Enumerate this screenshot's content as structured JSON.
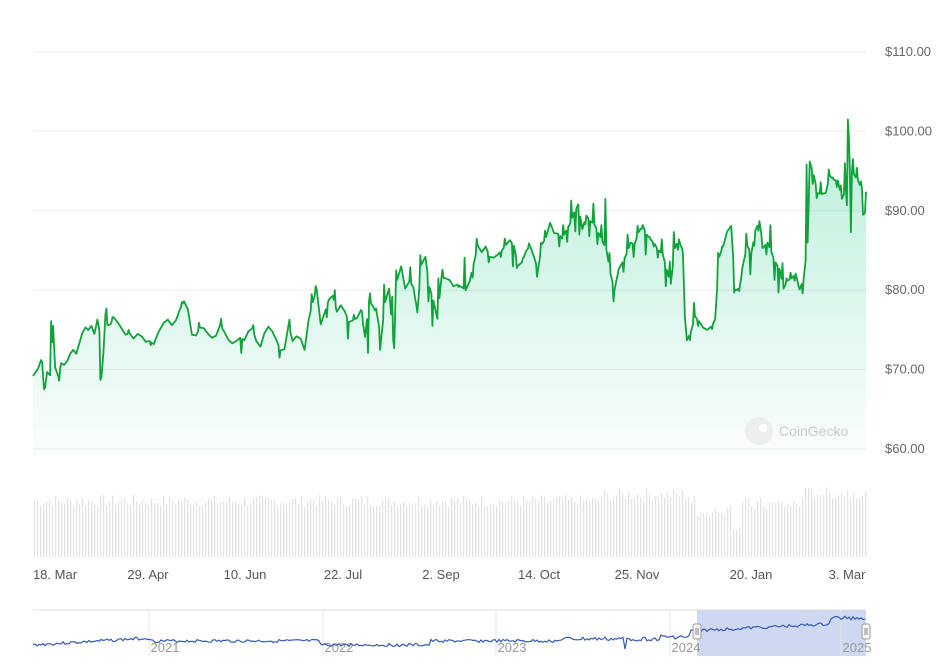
{
  "watermark": {
    "text": "CoinGecko"
  },
  "chart_data": [
    {
      "type": "area",
      "y_axis_side": "right",
      "ylim": [
        57,
        113
      ],
      "y_ticks": [
        60,
        70,
        80,
        90,
        100,
        110
      ],
      "y_tick_labels": [
        "$60.00",
        "$70.00",
        "$80.00",
        "$90.00",
        "$100.00",
        "$110.00"
      ],
      "x_tick_labels": [
        "18. Mar",
        "29. Apr",
        "10. Jun",
        "22. Jul",
        "2. Sep",
        "14. Oct",
        "25. Nov",
        "20. Jan",
        "3. Mar"
      ],
      "grid": true,
      "line_color": "#10a33b",
      "fill_color": "#16c784",
      "y_anchors": [
        [
          0,
          69.2
        ],
        [
          5,
          70.1
        ],
        [
          8,
          71.2
        ],
        [
          10,
          69.0
        ],
        [
          12,
          67.8
        ],
        [
          14,
          69.7
        ],
        [
          17,
          69.3
        ],
        [
          20,
          75.5
        ],
        [
          22,
          70.3
        ],
        [
          25,
          69.2
        ],
        [
          28,
          70.8
        ],
        [
          31,
          70.6
        ],
        [
          34,
          71.1
        ],
        [
          37,
          72.0
        ],
        [
          40,
          72.5
        ],
        [
          43,
          72.0
        ],
        [
          46,
          73.3
        ],
        [
          49,
          74.6
        ],
        [
          52,
          75.3
        ],
        [
          55,
          75.0
        ],
        [
          58,
          75.5
        ],
        [
          61,
          74.5
        ],
        [
          64,
          76.3
        ],
        [
          66,
          74.9
        ],
        [
          68,
          69.0
        ],
        [
          70,
          72.1
        ],
        [
          72,
          76.9
        ],
        [
          74,
          75.6
        ],
        [
          77,
          75.7
        ],
        [
          80,
          76.6
        ],
        [
          84,
          76.0
        ],
        [
          88,
          75.2
        ],
        [
          92,
          74.4
        ],
        [
          96,
          74.6
        ],
        [
          100,
          73.9
        ],
        [
          104,
          74.5
        ],
        [
          108,
          74.2
        ],
        [
          112,
          73.5
        ],
        [
          116,
          73.6
        ],
        [
          120,
          73.2
        ],
        [
          125,
          74.8
        ],
        [
          130,
          75.9
        ],
        [
          134,
          76.3
        ],
        [
          138,
          75.6
        ],
        [
          142,
          76.2
        ],
        [
          146,
          77.6
        ],
        [
          150,
          78.6
        ],
        [
          154,
          77.6
        ],
        [
          158,
          74.4
        ],
        [
          162,
          74.3
        ],
        [
          166,
          75.3
        ],
        [
          170,
          75.2
        ],
        [
          174,
          74.5
        ],
        [
          178,
          74.0
        ],
        [
          182,
          74.3
        ],
        [
          186,
          75.6
        ],
        [
          190,
          74.8
        ],
        [
          194,
          73.8
        ],
        [
          198,
          73.3
        ],
        [
          202,
          73.6
        ],
        [
          206,
          74.0
        ],
        [
          210,
          73.7
        ],
        [
          214,
          74.8
        ],
        [
          218,
          75.2
        ],
        [
          222,
          73.6
        ],
        [
          226,
          72.9
        ],
        [
          230,
          74.6
        ],
        [
          234,
          75.4
        ],
        [
          238,
          74.8
        ],
        [
          242,
          73.7
        ],
        [
          246,
          72.4
        ],
        [
          250,
          72.6
        ],
        [
          254,
          75.6
        ],
        [
          258,
          73.6
        ],
        [
          262,
          74.2
        ],
        [
          266,
          73.9
        ],
        [
          270,
          72.5
        ],
        [
          274,
          76.3
        ],
        [
          278,
          78.5
        ],
        [
          282,
          80.1
        ],
        [
          286,
          75.7
        ],
        [
          290,
          77.2
        ],
        [
          294,
          78.8
        ],
        [
          298,
          79.3
        ],
        [
          302,
          77.3
        ],
        [
          306,
          78.1
        ],
        [
          310,
          77.3
        ],
        [
          314,
          76.0
        ],
        [
          318,
          76.2
        ],
        [
          322,
          76.5
        ],
        [
          326,
          77.5
        ],
        [
          330,
          74.1
        ],
        [
          334,
          78.6
        ],
        [
          338,
          78.0
        ],
        [
          342,
          76.9
        ],
        [
          346,
          73.8
        ],
        [
          350,
          78.5
        ],
        [
          354,
          80.2
        ],
        [
          358,
          73.7
        ],
        [
          362,
          81.3
        ],
        [
          366,
          83.0
        ],
        [
          370,
          80.2
        ],
        [
          374,
          81.1
        ],
        [
          378,
          80.4
        ],
        [
          382,
          77.2
        ],
        [
          386,
          83.2
        ],
        [
          390,
          84.2
        ],
        [
          394,
          80.4
        ],
        [
          398,
          78.7
        ],
        [
          402,
          76.4
        ],
        [
          406,
          81.6
        ],
        [
          410,
          81.5
        ],
        [
          414,
          81.3
        ],
        [
          418,
          80.5
        ],
        [
          422,
          80.7
        ],
        [
          426,
          80.4
        ],
        [
          430,
          80.0
        ],
        [
          434,
          81.1
        ],
        [
          438,
          83.3
        ],
        [
          442,
          85.6
        ],
        [
          446,
          84.8
        ],
        [
          450,
          85.5
        ],
        [
          454,
          84.2
        ],
        [
          458,
          84.1
        ],
        [
          462,
          84.5
        ],
        [
          466,
          85.0
        ],
        [
          470,
          85.7
        ],
        [
          474,
          86.3
        ],
        [
          478,
          85.6
        ],
        [
          482,
          83.1
        ],
        [
          486,
          83.5
        ],
        [
          490,
          84.9
        ],
        [
          494,
          85.6
        ],
        [
          498,
          84.2
        ],
        [
          502,
          82.6
        ],
        [
          506,
          85.8
        ],
        [
          510,
          86.7
        ],
        [
          514,
          88.5
        ],
        [
          518,
          87.2
        ],
        [
          522,
          87.1
        ],
        [
          526,
          86.5
        ],
        [
          530,
          87.5
        ],
        [
          534,
          88.4
        ],
        [
          538,
          89.8
        ],
        [
          542,
          90.8
        ],
        [
          546,
          87.7
        ],
        [
          550,
          89.4
        ],
        [
          554,
          88.7
        ],
        [
          558,
          88.3
        ],
        [
          562,
          87.2
        ],
        [
          566,
          86.2
        ],
        [
          570,
          85.1
        ],
        [
          574,
          82.1
        ],
        [
          578,
          80.0
        ],
        [
          582,
          82.6
        ],
        [
          586,
          83.5
        ],
        [
          590,
          84.6
        ],
        [
          594,
          86.0
        ],
        [
          598,
          85.8
        ],
        [
          602,
          87.3
        ],
        [
          606,
          88.2
        ],
        [
          610,
          87.0
        ],
        [
          614,
          86.4
        ],
        [
          618,
          85.8
        ],
        [
          622,
          85.0
        ],
        [
          626,
          84.5
        ],
        [
          630,
          82.6
        ],
        [
          634,
          80.8
        ],
        [
          638,
          85.3
        ],
        [
          642,
          86.4
        ],
        [
          646,
          84.7
        ],
        [
          648,
          76.6
        ],
        [
          650,
          73.7
        ],
        [
          654,
          74.8
        ],
        [
          658,
          76.7
        ],
        [
          662,
          76.1
        ],
        [
          666,
          75.3
        ],
        [
          670,
          75.0
        ],
        [
          674,
          75.4
        ],
        [
          678,
          76.3
        ],
        [
          682,
          84.2
        ],
        [
          686,
          85.5
        ],
        [
          690,
          87.4
        ],
        [
          694,
          88.1
        ],
        [
          698,
          80.1
        ],
        [
          702,
          79.9
        ],
        [
          706,
          83.4
        ],
        [
          710,
          85.6
        ],
        [
          714,
          84.6
        ],
        [
          718,
          87.5
        ],
        [
          722,
          88.7
        ],
        [
          726,
          85.4
        ],
        [
          730,
          86.0
        ],
        [
          734,
          84.8
        ],
        [
          738,
          83.5
        ],
        [
          742,
          82.7
        ],
        [
          746,
          80.2
        ],
        [
          750,
          81.2
        ],
        [
          754,
          81.5
        ],
        [
          758,
          82.1
        ],
        [
          762,
          80.1
        ],
        [
          766,
          81.4
        ],
        [
          770,
          86.0
        ],
        [
          772,
          96.2
        ],
        [
          776,
          94.5
        ],
        [
          780,
          92.2
        ],
        [
          784,
          92.1
        ],
        [
          788,
          92.3
        ],
        [
          792,
          94.4
        ],
        [
          796,
          93.9
        ],
        [
          800,
          93.8
        ],
        [
          804,
          91.5
        ],
        [
          808,
          92.6
        ],
        [
          810,
          101.5
        ],
        [
          812,
          95.0
        ],
        [
          816,
          94.6
        ],
        [
          820,
          93.8
        ],
        [
          824,
          92.7
        ],
        [
          826,
          89.6
        ],
        [
          828,
          92.4
        ]
      ],
      "y_spikes": [
        [
          9,
          71.0
        ],
        [
          11,
          67.5
        ],
        [
          18,
          76.1
        ],
        [
          26,
          68.6
        ],
        [
          67,
          68.7
        ],
        [
          73,
          77.7
        ],
        [
          79,
          76.6
        ],
        [
          95,
          75.0
        ],
        [
          117,
          73.1
        ],
        [
          148,
          78.5
        ],
        [
          165,
          75.9
        ],
        [
          187,
          76.4
        ],
        [
          207,
          72.1
        ],
        [
          219,
          75.6
        ],
        [
          245,
          71.5
        ],
        [
          255,
          76.3
        ],
        [
          277,
          79.5
        ],
        [
          281,
          80.5
        ],
        [
          292,
          76.6
        ],
        [
          300,
          80.0
        ],
        [
          313,
          73.9
        ],
        [
          319,
          76.9
        ],
        [
          327,
          77.3
        ],
        [
          333,
          72.1
        ],
        [
          335,
          79.6
        ],
        [
          341,
          77.7
        ],
        [
          345,
          72.5
        ],
        [
          349,
          80.7
        ],
        [
          357,
          79.2
        ],
        [
          359,
          72.7
        ],
        [
          361,
          82.5
        ],
        [
          375,
          82.9
        ],
        [
          381,
          78.2
        ],
        [
          385,
          84.4
        ],
        [
          393,
          78.6
        ],
        [
          397,
          75.5
        ],
        [
          403,
          81.5
        ],
        [
          407,
          82.6
        ],
        [
          423,
          80.4
        ],
        [
          429,
          84.1
        ],
        [
          437,
          81.6
        ],
        [
          441,
          86.5
        ],
        [
          453,
          83.5
        ],
        [
          465,
          84.2
        ],
        [
          469,
          86.5
        ],
        [
          477,
          83.0
        ],
        [
          481,
          82.8
        ],
        [
          487,
          84.0
        ],
        [
          493,
          85.9
        ],
        [
          501,
          81.7
        ],
        [
          505,
          86.0
        ],
        [
          509,
          87.5
        ],
        [
          517,
          87.5
        ],
        [
          523,
          85.5
        ],
        [
          527,
          88.2
        ],
        [
          531,
          86.1
        ],
        [
          535,
          91.3
        ],
        [
          539,
          87.4
        ],
        [
          543,
          87.0
        ],
        [
          549,
          88.3
        ],
        [
          553,
          86.8
        ],
        [
          557,
          90.9
        ],
        [
          561,
          85.8
        ],
        [
          565,
          88.2
        ],
        [
          569,
          91.5
        ],
        [
          573,
          84.7
        ],
        [
          577,
          78.6
        ],
        [
          581,
          81.8
        ],
        [
          587,
          82.3
        ],
        [
          591,
          87.0
        ],
        [
          597,
          84.2
        ],
        [
          601,
          88.1
        ],
        [
          605,
          87.7
        ],
        [
          609,
          84.5
        ],
        [
          613,
          86.7
        ],
        [
          617,
          85.5
        ],
        [
          621,
          84.1
        ],
        [
          625,
          86.4
        ],
        [
          629,
          80.5
        ],
        [
          633,
          83.6
        ],
        [
          637,
          87.3
        ],
        [
          641,
          85.1
        ],
        [
          645,
          85.3
        ],
        [
          653,
          73.7
        ],
        [
          657,
          78.4
        ],
        [
          661,
          75.5
        ],
        [
          675,
          75.1
        ],
        [
          681,
          84.7
        ],
        [
          685,
          85.5
        ],
        [
          689,
          87.0
        ],
        [
          697,
          79.7
        ],
        [
          701,
          80.2
        ],
        [
          705,
          82.8
        ],
        [
          709,
          87.1
        ],
        [
          713,
          82.0
        ],
        [
          717,
          85.6
        ],
        [
          721,
          87.5
        ],
        [
          725,
          85.3
        ],
        [
          729,
          84.5
        ],
        [
          733,
          88.2
        ],
        [
          737,
          81.3
        ],
        [
          741,
          79.7
        ],
        [
          745,
          83.4
        ],
        [
          749,
          81.5
        ],
        [
          753,
          82.2
        ],
        [
          757,
          81.2
        ],
        [
          761,
          80.5
        ],
        [
          765,
          79.6
        ],
        [
          769,
          95.8
        ],
        [
          775,
          93.4
        ],
        [
          779,
          91.6
        ],
        [
          783,
          93.6
        ],
        [
          787,
          92.2
        ],
        [
          791,
          95.2
        ],
        [
          795,
          94.2
        ],
        [
          799,
          93.0
        ],
        [
          803,
          93.2
        ],
        [
          807,
          96.0
        ],
        [
          809,
          90.7
        ],
        [
          811,
          99.2
        ],
        [
          813,
          87.3
        ],
        [
          815,
          96.5
        ],
        [
          819,
          95.4
        ],
        [
          823,
          93.7
        ],
        [
          825,
          89.5
        ],
        [
          827,
          89.8
        ]
      ]
    },
    {
      "type": "navigator",
      "x_tick_labels": [
        "2021",
        "2022",
        "2023",
        "2024",
        "2025"
      ]
    }
  ]
}
